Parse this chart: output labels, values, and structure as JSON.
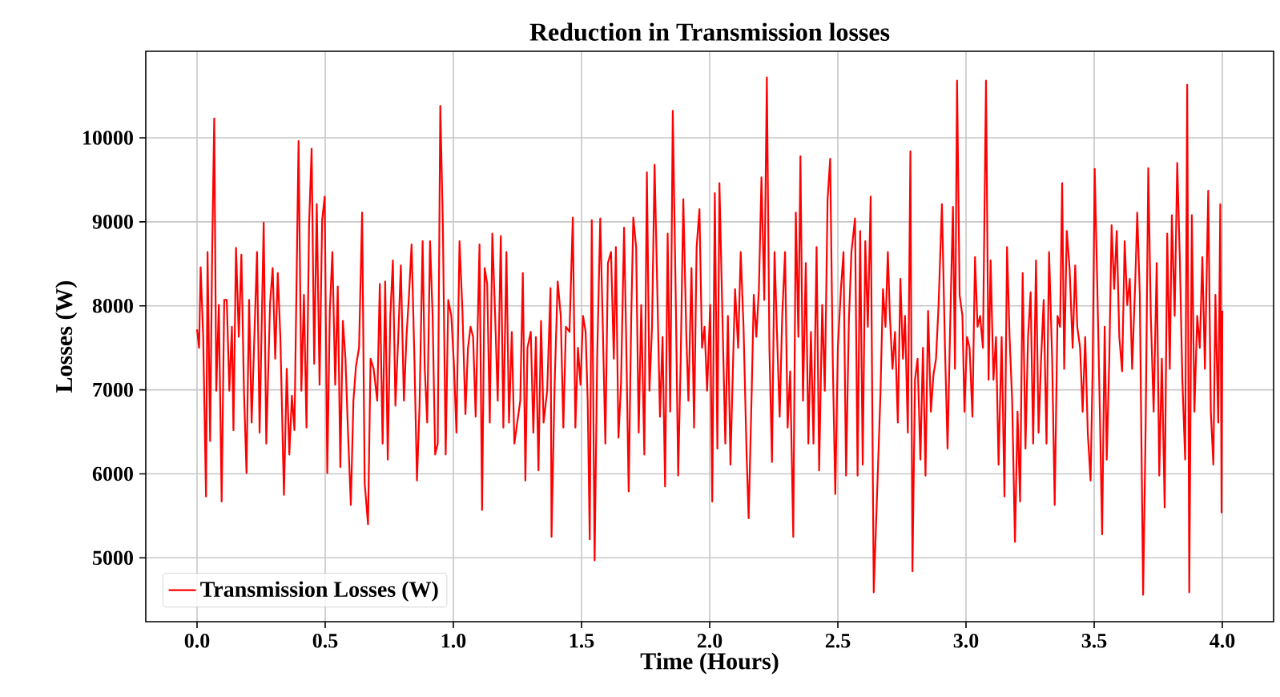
{
  "chart_data": {
    "type": "line",
    "title": "Reduction in Transmission losses",
    "xlabel": "Time (Hours)",
    "ylabel": "Losses (W)",
    "xlim": [
      -0.2,
      4.2
    ],
    "ylim": [
      4240,
      11030
    ],
    "xticks": [
      {
        "value": 0,
        "label": "0.0"
      },
      {
        "value": 0.5,
        "label": "0.5"
      },
      {
        "value": 1,
        "label": "1.0"
      },
      {
        "value": 1.5,
        "label": "1.5"
      },
      {
        "value": 2,
        "label": "2.0"
      },
      {
        "value": 2.5,
        "label": "2.5"
      },
      {
        "value": 3,
        "label": "3.0"
      },
      {
        "value": 3.5,
        "label": "3.5"
      },
      {
        "value": 4,
        "label": "4.0"
      }
    ],
    "yticks": [
      5000,
      6000,
      7000,
      8000,
      9000,
      10000
    ],
    "grid": true,
    "legend": "bottom left",
    "marker": "none",
    "line_style": "solid",
    "x": [
      0.0,
      0.008,
      0.014,
      0.024,
      0.035,
      0.041,
      0.051,
      0.059,
      0.067,
      0.075,
      0.085,
      0.096,
      0.106,
      0.116,
      0.126,
      0.136,
      0.142,
      0.152,
      0.163,
      0.173,
      0.183,
      0.193,
      0.203,
      0.213,
      0.234,
      0.244,
      0.26,
      0.27,
      0.285,
      0.295,
      0.305,
      0.315,
      0.325,
      0.339,
      0.35,
      0.36,
      0.37,
      0.38,
      0.396,
      0.407,
      0.417,
      0.427,
      0.437,
      0.447,
      0.457,
      0.467,
      0.478,
      0.488,
      0.498,
      0.508,
      0.518,
      0.528,
      0.539,
      0.549,
      0.559,
      0.569,
      0.579,
      0.589,
      0.6,
      0.61,
      0.62,
      0.632,
      0.644,
      0.654,
      0.667,
      0.677,
      0.689,
      0.703,
      0.713,
      0.724,
      0.734,
      0.744,
      0.754,
      0.764,
      0.774,
      0.785,
      0.795,
      0.807,
      0.817,
      0.827,
      0.837,
      0.848,
      0.858,
      0.868,
      0.88,
      0.888,
      0.898,
      0.909,
      0.919,
      0.929,
      0.939,
      0.949,
      0.959,
      0.97,
      0.98,
      0.992,
      1.002,
      1.012,
      1.024,
      1.035,
      1.047,
      1.057,
      1.067,
      1.077,
      1.087,
      1.102,
      1.112,
      1.122,
      1.132,
      1.142,
      1.152,
      1.163,
      1.173,
      1.185,
      1.195,
      1.207,
      1.217,
      1.228,
      1.238,
      1.261,
      1.271,
      1.281,
      1.289,
      1.302,
      1.312,
      1.322,
      1.332,
      1.342,
      1.352,
      1.366,
      1.379,
      1.383,
      1.395,
      1.407,
      1.419,
      1.429,
      1.439,
      1.453,
      1.466,
      1.476,
      1.486,
      1.496,
      1.506,
      1.516,
      1.524,
      1.532,
      1.54,
      1.551,
      1.561,
      1.573,
      1.583,
      1.593,
      1.603,
      1.615,
      1.626,
      1.634,
      1.644,
      1.654,
      1.666,
      1.674,
      1.684,
      1.694,
      1.702,
      1.713,
      1.723,
      1.733,
      1.745,
      1.755,
      1.765,
      1.775,
      1.785,
      1.796,
      1.806,
      1.816,
      1.826,
      1.836,
      1.846,
      1.856,
      1.868,
      1.877,
      1.887,
      1.897,
      1.909,
      1.917,
      1.929,
      1.939,
      1.949,
      1.96,
      1.97,
      1.98,
      1.99,
      2.002,
      2.01,
      2.02,
      2.03,
      2.038,
      2.051,
      2.061,
      2.071,
      2.081,
      2.091,
      2.099,
      2.111,
      2.121,
      2.132,
      2.144,
      2.152,
      2.164,
      2.172,
      2.182,
      2.192,
      2.202,
      2.213,
      2.223,
      2.233,
      2.243,
      2.253,
      2.263,
      2.273,
      2.283,
      2.294,
      2.304,
      2.314,
      2.326,
      2.336,
      2.346,
      2.354,
      2.364,
      2.375,
      2.385,
      2.395,
      2.405,
      2.417,
      2.427,
      2.439,
      2.449,
      2.46,
      2.47,
      2.48,
      2.49,
      2.5,
      2.512,
      2.522,
      2.532,
      2.543,
      2.553,
      2.567,
      2.577,
      2.587,
      2.597,
      2.607,
      2.617,
      2.628,
      2.64,
      2.666,
      2.676,
      2.686,
      2.695,
      2.703,
      2.713,
      2.723,
      2.734,
      2.744,
      2.754,
      2.762,
      2.773,
      2.783,
      2.791,
      2.801,
      2.811,
      2.822,
      2.832,
      2.842,
      2.852,
      2.863,
      2.873,
      2.883,
      2.893,
      2.906,
      2.918,
      2.928,
      2.939,
      2.949,
      2.957,
      2.965,
      2.975,
      2.986,
      2.994,
      3.004,
      3.014,
      3.025,
      3.035,
      3.045,
      3.055,
      3.066,
      3.078,
      3.088,
      3.096,
      3.107,
      3.117,
      3.127,
      3.139,
      3.15,
      3.16,
      3.17,
      3.18,
      3.191,
      3.201,
      3.211,
      3.221,
      3.232,
      3.242,
      3.252,
      3.262,
      3.273,
      3.283,
      3.293,
      3.303,
      3.314,
      3.324,
      3.336,
      3.346,
      3.357,
      3.367,
      3.375,
      3.383,
      3.393,
      3.404,
      3.416,
      3.426,
      3.434,
      3.445,
      3.455,
      3.465,
      3.475,
      3.486,
      3.494,
      3.502,
      3.512,
      3.523,
      3.531,
      3.541,
      3.549,
      3.559,
      3.568,
      3.578,
      3.588,
      3.598,
      3.609,
      3.619,
      3.629,
      3.639,
      3.648,
      3.66,
      3.668,
      3.678,
      3.691,
      3.701,
      3.711,
      3.721,
      3.732,
      3.744,
      3.754,
      3.764,
      3.775,
      3.785,
      3.795,
      3.803,
      3.814,
      3.824,
      3.834,
      3.844,
      3.855,
      3.863,
      3.871,
      3.881,
      3.891,
      3.902,
      3.912,
      3.922,
      3.932,
      3.945,
      3.955,
      3.965,
      3.973,
      3.984,
      3.992,
      3.997,
      4.0
    ],
    "series": [
      {
        "name": "Transmission Losses (W)",
        "color": "#ff0000",
        "values": [
          7720,
          7500,
          8460,
          7630,
          5730,
          8640,
          6390,
          8640,
          10230,
          6990,
          8010,
          5670,
          8070,
          8070,
          6990,
          7750,
          6520,
          8690,
          7630,
          8610,
          6990,
          6010,
          8070,
          6610,
          8640,
          6490,
          8990,
          6360,
          8040,
          8450,
          7370,
          8390,
          7630,
          5750,
          7250,
          6230,
          6930,
          6520,
          9960,
          6990,
          8130,
          6550,
          8960,
          9870,
          7310,
          9210,
          7060,
          9020,
          9300,
          6010,
          7940,
          8640,
          7060,
          8230,
          6080,
          7820,
          7370,
          6490,
          5630,
          6870,
          7280,
          7500,
          9110,
          5890,
          5400,
          7370,
          7250,
          6870,
          8260,
          6360,
          8290,
          6170,
          7880,
          8540,
          6810,
          7630,
          8480,
          6870,
          7630,
          8130,
          8730,
          7370,
          5920,
          6810,
          8770,
          7280,
          6610,
          8770,
          7880,
          6230,
          6360,
          10380,
          8960,
          6230,
          8070,
          7880,
          7310,
          6490,
          8770,
          7970,
          6710,
          7500,
          7750,
          7630,
          6680,
          8730,
          5570,
          8450,
          8260,
          6610,
          8860,
          7880,
          6870,
          8830,
          6550,
          8640,
          6610,
          7690,
          6360,
          6870,
          8390,
          5920,
          7500,
          7690,
          6490,
          7630,
          6040,
          7820,
          6610,
          6990,
          8210,
          5250,
          7060,
          8290,
          7880,
          6550,
          7750,
          7690,
          9050,
          6550,
          7500,
          7060,
          7880,
          7690,
          6870,
          5220,
          9020,
          4970,
          7370,
          9040,
          7750,
          6360,
          8510,
          8640,
          7370,
          8700,
          6430,
          7060,
          8930,
          7630,
          5790,
          7880,
          9050,
          8700,
          6490,
          8010,
          6230,
          9590,
          6990,
          7750,
          9680,
          8130,
          6680,
          7630,
          5850,
          8860,
          6740,
          10320,
          8010,
          5980,
          7370,
          9270,
          7630,
          6870,
          8450,
          6550,
          8700,
          9150,
          7500,
          7750,
          6990,
          8010,
          5670,
          9340,
          6300,
          9460,
          7690,
          6360,
          7880,
          6110,
          7310,
          8200,
          7500,
          8640,
          7750,
          6230,
          5470,
          6990,
          8130,
          7630,
          8200,
          9530,
          8070,
          10720,
          7500,
          6140,
          8640,
          7630,
          6680,
          7880,
          8640,
          6550,
          7220,
          5250,
          9110,
          7630,
          9780,
          6870,
          8510,
          6360,
          7690,
          6360,
          8700,
          6040,
          8010,
          6990,
          9270,
          9750,
          7370,
          5760,
          7500,
          8200,
          8640,
          5980,
          7820,
          8640,
          9040,
          5980,
          8890,
          6110,
          8770,
          7750,
          9300,
          4590,
          6930,
          8200,
          7750,
          8640,
          7880,
          7250,
          7690,
          6610,
          8320,
          7370,
          7880,
          6490,
          9840,
          4840,
          7120,
          7370,
          6170,
          7500,
          5980,
          7940,
          6740,
          7180,
          7370,
          8010,
          9210,
          7500,
          6300,
          7880,
          9180,
          7250,
          10680,
          8130,
          7880,
          6740,
          7630,
          7500,
          6680,
          8580,
          7750,
          7880,
          7500,
          10680,
          7120,
          8540,
          7120,
          7630,
          6110,
          7630,
          5730,
          8700,
          7630,
          6870,
          5190,
          6740,
          5670,
          8390,
          6300,
          7630,
          8160,
          6360,
          8540,
          6490,
          7370,
          8070,
          6360,
          8640,
          7370,
          5630,
          7880,
          7750,
          9460,
          7250,
          8890,
          8450,
          7500,
          8480,
          7750,
          7500,
          6740,
          7630,
          6490,
          5920,
          7250,
          9630,
          8260,
          6610,
          5280,
          7750,
          6170,
          7370,
          8960,
          8200,
          8890,
          7630,
          7220,
          8770,
          8010,
          8320,
          7250,
          8260,
          9110,
          8130,
          4560,
          6610,
          9640,
          7880,
          6740,
          8510,
          5980,
          7370,
          5600,
          8860,
          7250,
          9080,
          7880,
          9700,
          8580,
          7120,
          6170,
          10630,
          4590,
          9080,
          6740,
          7880,
          7500,
          8580,
          7250,
          9370,
          6740,
          6110,
          8130,
          6610,
          9210,
          5540,
          7940
        ]
      }
    ]
  }
}
